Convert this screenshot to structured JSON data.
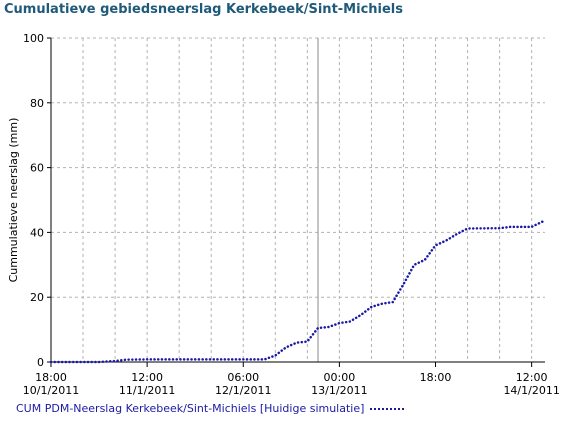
{
  "chart_data": {
    "type": "line",
    "title": "Cumulatieve gebiedsneerslag Kerkebeek/Sint-Michiels",
    "xlabel": "",
    "ylabel": "Cummulatieve neerslag (mm)",
    "ylim": [
      0,
      100
    ],
    "yticks": [
      "0",
      "20",
      "40",
      "60",
      "80",
      "100"
    ],
    "xlim": [
      "2011-01-10 18:00",
      "2011-01-14 14:30"
    ],
    "xticks": [
      {
        "time": "2011-01-10 18:00",
        "line1": "18:00",
        "line2": "10/1/2011"
      },
      {
        "time": "2011-01-11 12:00",
        "line1": "12:00",
        "line2": "11/1/2011"
      },
      {
        "time": "2011-01-12 06:00",
        "line1": "06:00",
        "line2": "12/1/2011"
      },
      {
        "time": "2011-01-13 00:00",
        "line1": "00:00",
        "line2": "13/1/2011"
      },
      {
        "time": "2011-01-13 18:00",
        "line1": "18:00",
        "line2": ""
      },
      {
        "time": "2011-01-14 12:00",
        "line1": "12:00",
        "line2": "14/1/2011"
      }
    ],
    "grid": true,
    "legend_position": "bottom-left",
    "marker_time": "2011-01-12 20:00",
    "series": [
      {
        "name": "CUM PDM-Neerslag Kerkebeek/Sint-Michiels [Huidige simulatie]",
        "color": "#1a1aa6",
        "points": [
          [
            "2011-01-10 18:00",
            0
          ],
          [
            "2011-01-11 03:00",
            0
          ],
          [
            "2011-01-11 06:00",
            0.3
          ],
          [
            "2011-01-11 08:00",
            0.7
          ],
          [
            "2011-01-11 12:00",
            0.8
          ],
          [
            "2011-01-12 10:00",
            0.8
          ],
          [
            "2011-01-12 12:00",
            2
          ],
          [
            "2011-01-12 14:00",
            4.5
          ],
          [
            "2011-01-12 16:00",
            6
          ],
          [
            "2011-01-12 18:00",
            6.3
          ],
          [
            "2011-01-12 20:00",
            10.5
          ],
          [
            "2011-01-12 22:00",
            10.8
          ],
          [
            "2011-01-13 00:00",
            12
          ],
          [
            "2011-01-13 02:00",
            12.5
          ],
          [
            "2011-01-13 04:00",
            14.5
          ],
          [
            "2011-01-13 06:00",
            17
          ],
          [
            "2011-01-13 08:00",
            18
          ],
          [
            "2011-01-13 10:00",
            18.5
          ],
          [
            "2011-01-13 12:00",
            24
          ],
          [
            "2011-01-13 14:00",
            30
          ],
          [
            "2011-01-13 16:00",
            31.5
          ],
          [
            "2011-01-13 18:00",
            36
          ],
          [
            "2011-01-13 20:00",
            37.5
          ],
          [
            "2011-01-13 22:00",
            39.5
          ],
          [
            "2011-01-14 00:00",
            41.2
          ],
          [
            "2011-01-14 06:00",
            41.3
          ],
          [
            "2011-01-14 08:00",
            41.7
          ],
          [
            "2011-01-14 12:00",
            41.7
          ],
          [
            "2011-01-14 14:00",
            43.3
          ]
        ]
      }
    ]
  }
}
